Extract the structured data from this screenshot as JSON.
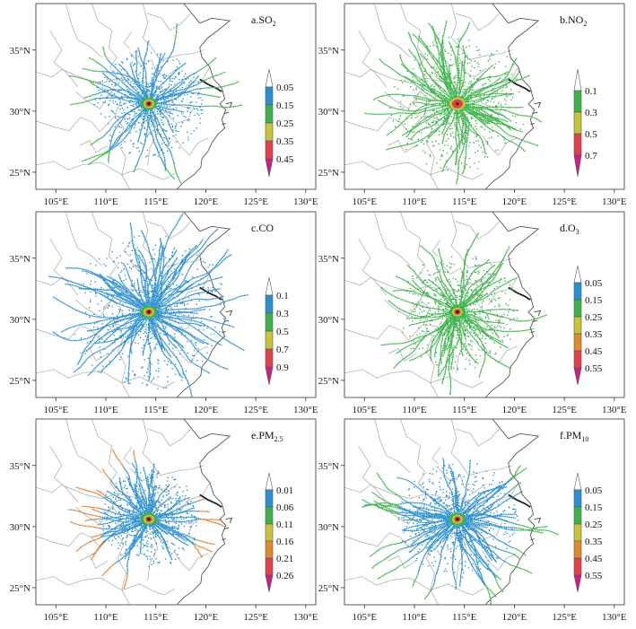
{
  "figure": {
    "x_ticks": [
      "105°E",
      "110°E",
      "115°E",
      "120°E",
      "125°E",
      "130°E"
    ],
    "y_ticks": [
      "35°N",
      "30°N",
      "25°N"
    ]
  },
  "chart_data": [
    {
      "type": "scatter",
      "title": "a.SO",
      "title_sub": "2",
      "xlim": [
        103,
        131
      ],
      "ylim": [
        23.6,
        38.8
      ],
      "x_ticks": [
        105,
        110,
        115,
        120,
        125,
        130
      ],
      "y_ticks": [
        25,
        30,
        35
      ],
      "source": [
        114.3,
        30.6
      ],
      "colorbar": {
        "labels": [
          "0.05",
          "0.15",
          "0.25",
          "0.35",
          "0.45"
        ],
        "colors": [
          "#ffffff",
          "#2a8fd0",
          "#3cb34a",
          "#c8c43a",
          "#e0404a",
          "#c8208a"
        ]
      },
      "scatter_style": {
        "main": "#2a8fd0",
        "outer": "#3cb34a",
        "dense_radius": 5.5,
        "max_radius": 10,
        "trajectories": 42
      }
    },
    {
      "type": "scatter",
      "title": "b.NO",
      "title_sub": "2",
      "xlim": [
        103,
        131
      ],
      "ylim": [
        23.6,
        38.8
      ],
      "x_ticks": [
        105,
        110,
        115,
        120,
        125,
        130
      ],
      "y_ticks": [
        25,
        30,
        35
      ],
      "source": [
        114.3,
        30.6
      ],
      "colorbar": {
        "labels": [
          "0.1",
          "0.3",
          "0.5",
          "0.7"
        ],
        "colors": [
          "#ffffff",
          "#3cb34a",
          "#c8c43a",
          "#e0404a",
          "#c8208a"
        ]
      },
      "scatter_style": {
        "main": "#3cb34a",
        "outer": "#3cb34a",
        "dense_radius": 7,
        "max_radius": 10,
        "trajectories": 70
      }
    },
    {
      "type": "scatter",
      "title": "c.CO",
      "title_sub": "",
      "xlim": [
        103,
        131
      ],
      "ylim": [
        23.6,
        38.8
      ],
      "x_ticks": [
        105,
        110,
        115,
        120,
        125,
        130
      ],
      "y_ticks": [
        25,
        30,
        35
      ],
      "source": [
        114.3,
        30.6
      ],
      "colorbar": {
        "labels": [
          "0.1",
          "0.3",
          "0.5",
          "0.7",
          "0.9"
        ],
        "colors": [
          "#ffffff",
          "#2a8fd0",
          "#3cb34a",
          "#c8c43a",
          "#e0404a",
          "#c8208a"
        ]
      },
      "scatter_style": {
        "main": "#2a8fd0",
        "outer": "#2a8fd0",
        "dense_radius": 8,
        "max_radius": 12,
        "trajectories": 80
      }
    },
    {
      "type": "scatter",
      "title": "d.O",
      "title_sub": "3",
      "xlim": [
        103,
        131
      ],
      "ylim": [
        23.6,
        38.8
      ],
      "x_ticks": [
        105,
        110,
        115,
        120,
        125,
        130
      ],
      "y_ticks": [
        25,
        30,
        35
      ],
      "source": [
        114.3,
        30.6
      ],
      "colorbar": {
        "labels": [
          "0.05",
          "0.15",
          "0.25",
          "0.35",
          "0.45",
          "0.55"
        ],
        "colors": [
          "#ffffff",
          "#2a8fd0",
          "#3cb34a",
          "#c8c43a",
          "#e08a30",
          "#e0404a",
          "#c8208a"
        ]
      },
      "scatter_style": {
        "main": "#3cb34a",
        "outer": "#3cb34a",
        "dense_radius": 6,
        "max_radius": 10,
        "trajectories": 55
      }
    },
    {
      "type": "scatter",
      "title": "e.PM",
      "title_sub": "2.5",
      "xlim": [
        103,
        131
      ],
      "ylim": [
        23.6,
        38.8
      ],
      "x_ticks": [
        105,
        110,
        115,
        120,
        125,
        130
      ],
      "y_ticks": [
        25,
        30,
        35
      ],
      "source": [
        114.3,
        30.6
      ],
      "colorbar": {
        "labels": [
          "0.01",
          "0.06",
          "0.11",
          "0.16",
          "0.21",
          "0.26"
        ],
        "colors": [
          "#ffffff",
          "#2a8fd0",
          "#3cb34a",
          "#c8c43a",
          "#e08a30",
          "#e0404a",
          "#c8208a"
        ]
      },
      "scatter_style": {
        "main": "#2a8fd0",
        "outer": "#e07a2a",
        "dense_radius": 5,
        "max_radius": 9,
        "trajectories": 60
      }
    },
    {
      "type": "scatter",
      "title": "f.PM",
      "title_sub": "10",
      "xlim": [
        103,
        131
      ],
      "ylim": [
        23.6,
        38.8
      ],
      "x_ticks": [
        105,
        110,
        115,
        120,
        125,
        130
      ],
      "y_ticks": [
        25,
        30,
        35
      ],
      "source": [
        114.3,
        30.6
      ],
      "colorbar": {
        "labels": [
          "0.05",
          "0.15",
          "0.25",
          "0.35",
          "0.45",
          "0.55"
        ],
        "colors": [
          "#ffffff",
          "#2a8fd0",
          "#3cb34a",
          "#c8c43a",
          "#e08a30",
          "#e0404a",
          "#c8208a"
        ]
      },
      "scatter_style": {
        "main": "#2a8fd0",
        "outer": "#3cb34a",
        "dense_radius": 6,
        "max_radius": 11,
        "trajectories": 70
      }
    }
  ]
}
